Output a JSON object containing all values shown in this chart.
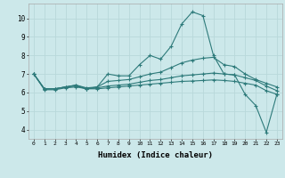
{
  "xlabel": "Humidex (Indice chaleur)",
  "background_color": "#cce8ea",
  "grid_color": "#b8d8da",
  "line_color": "#2d7a7a",
  "xlim": [
    -0.5,
    23.5
  ],
  "ylim": [
    3.5,
    10.8
  ],
  "yticks": [
    4,
    5,
    6,
    7,
    8,
    9,
    10
  ],
  "xticks": [
    0,
    1,
    2,
    3,
    4,
    5,
    6,
    7,
    8,
    9,
    10,
    11,
    12,
    13,
    14,
    15,
    16,
    17,
    18,
    19,
    20,
    21,
    22,
    23
  ],
  "line1_y": [
    7.0,
    6.2,
    6.2,
    6.3,
    6.4,
    6.2,
    6.3,
    7.0,
    6.9,
    6.9,
    7.5,
    8.0,
    7.8,
    8.5,
    9.7,
    10.35,
    10.15,
    8.0,
    7.0,
    6.95,
    5.9,
    5.3,
    3.85,
    5.9
  ],
  "line2_y": [
    7.0,
    6.2,
    6.2,
    6.3,
    6.4,
    6.25,
    6.3,
    6.6,
    6.65,
    6.7,
    6.85,
    7.0,
    7.1,
    7.35,
    7.6,
    7.75,
    7.85,
    7.9,
    7.5,
    7.4,
    7.0,
    6.7,
    6.5,
    6.3
  ],
  "line3_y": [
    7.0,
    6.2,
    6.2,
    6.3,
    6.35,
    6.2,
    6.25,
    6.35,
    6.4,
    6.45,
    6.55,
    6.65,
    6.7,
    6.8,
    6.9,
    6.95,
    7.0,
    7.05,
    7.0,
    6.95,
    6.8,
    6.65,
    6.35,
    6.1
  ],
  "line4_y": [
    7.0,
    6.15,
    6.15,
    6.25,
    6.3,
    6.2,
    6.2,
    6.25,
    6.3,
    6.35,
    6.4,
    6.45,
    6.5,
    6.55,
    6.6,
    6.62,
    6.65,
    6.68,
    6.65,
    6.6,
    6.5,
    6.4,
    6.1,
    5.9
  ]
}
